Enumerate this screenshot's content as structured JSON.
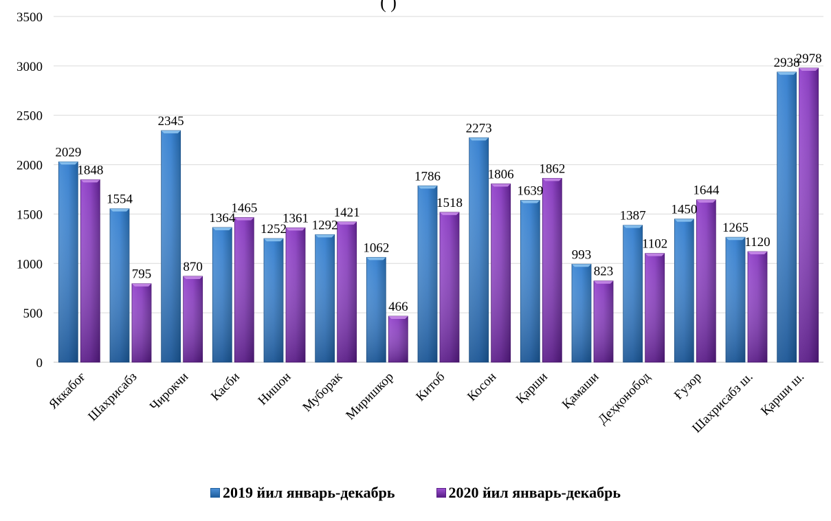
{
  "chart_data": {
    "type": "bar",
    "title_fragment": "(        )",
    "categories": [
      "Яккабоғ",
      "Шахрисабз",
      "Чирокчи",
      "Касби",
      "Нишон",
      "Муборак",
      "Миришкор",
      "Китоб",
      "Косон",
      "Қарши",
      "Қамаши",
      "Деҳқонобод",
      "Ғузор",
      "Шахрисабз ш.",
      "Қарши ш."
    ],
    "series": [
      {
        "name": "2019 йил январь-декабрь",
        "color": "#2e75b6",
        "values": [
          2029,
          1554,
          2345,
          1364,
          1252,
          1292,
          1062,
          1786,
          2273,
          1639,
          993,
          1387,
          1450,
          1265,
          2938
        ]
      },
      {
        "name": "2020 йил январь-декабрь",
        "color": "#7030a0",
        "values": [
          1848,
          795,
          870,
          1465,
          1361,
          1421,
          466,
          1518,
          1806,
          1862,
          823,
          1102,
          1644,
          1120,
          2978
        ]
      }
    ],
    "ylim": [
      0,
      3500
    ],
    "yticks": [
      0,
      500,
      1000,
      1500,
      2000,
      2500,
      3000,
      3500
    ],
    "grid": true,
    "legend_position": "bottom"
  }
}
